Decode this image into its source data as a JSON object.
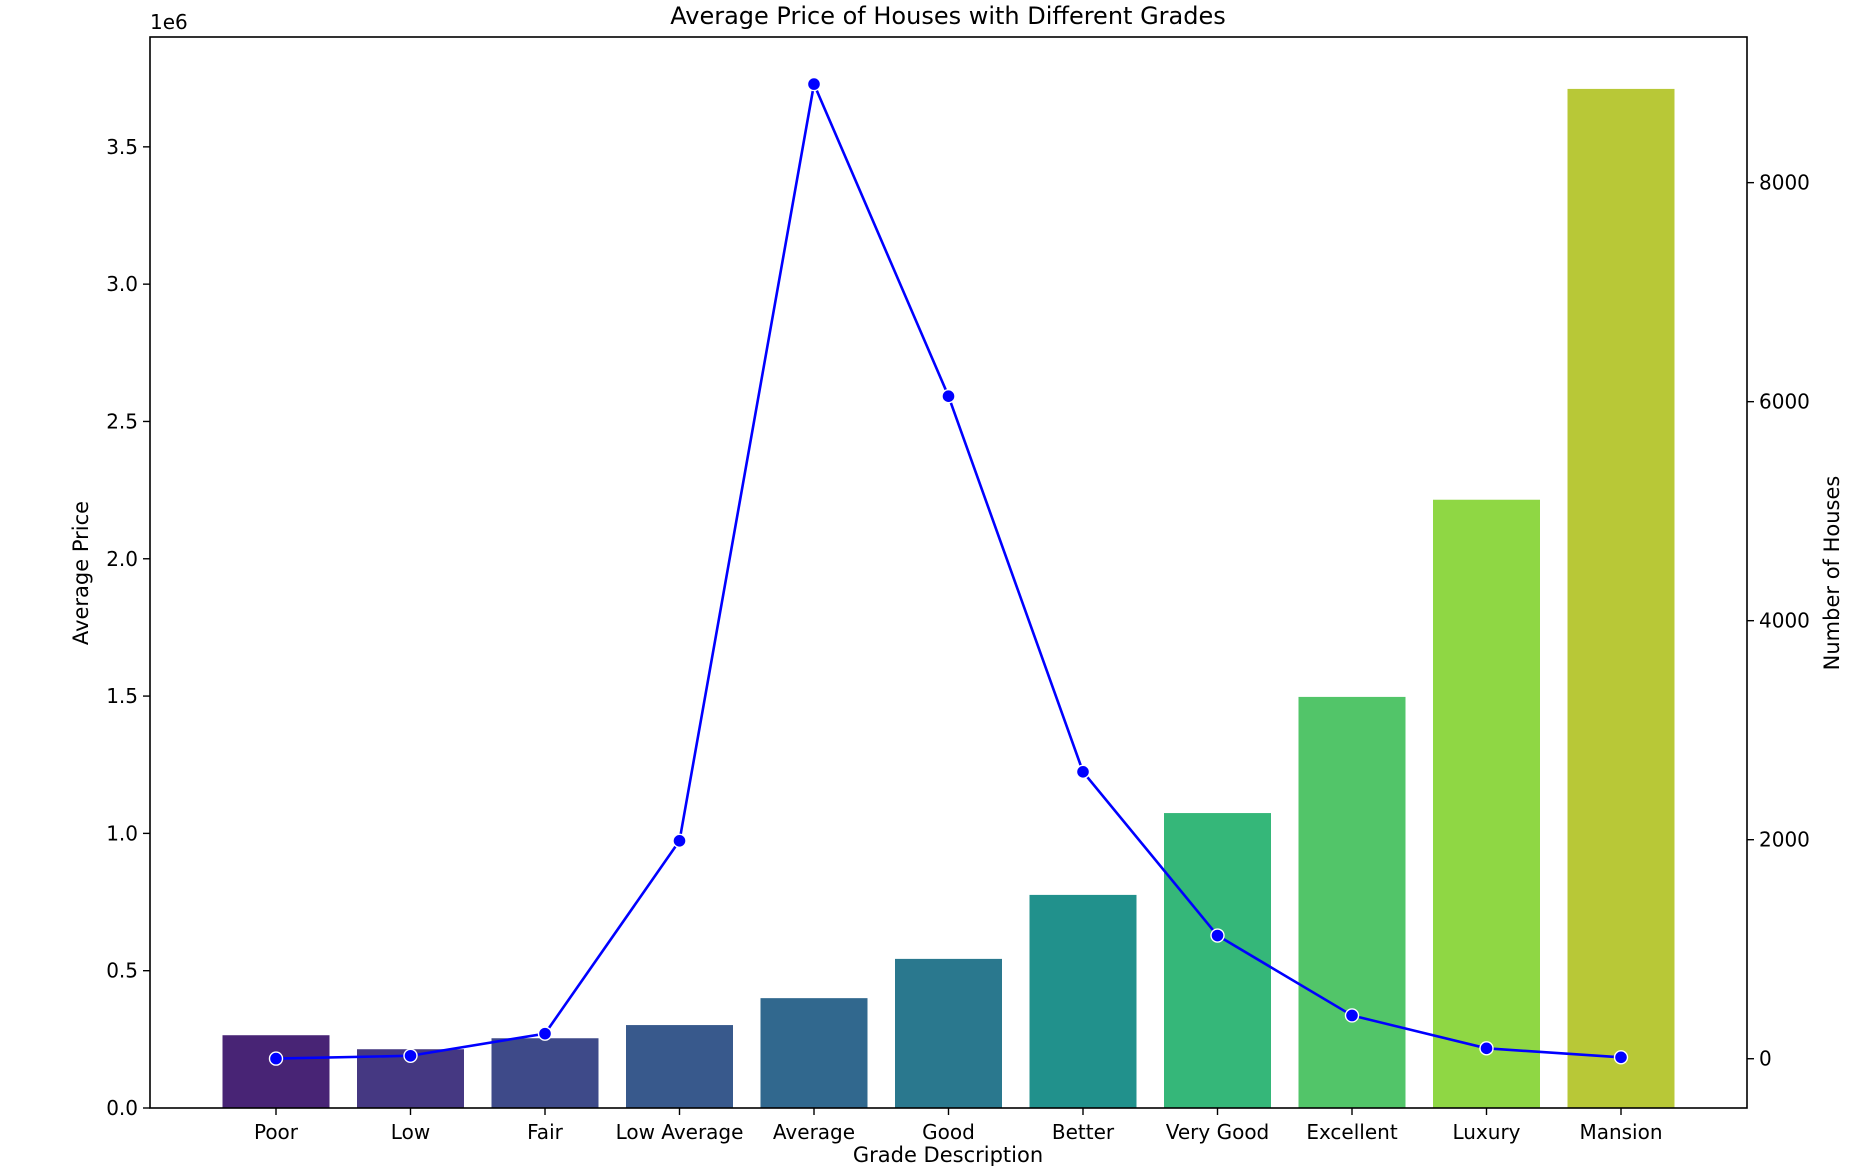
{
  "chart_data": {
    "type": "bar",
    "title": "Average Price of Houses with Different Grades",
    "xlabel": "Grade Description",
    "ylabel": "Average Price",
    "y2label": "Number of Houses",
    "y_offset_text": "1e6",
    "categories": [
      "Poor",
      "Low",
      "Fair",
      "Low Average",
      "Average",
      "Good",
      "Better",
      "Very Good",
      "Excellent",
      "Luxury",
      "Mansion"
    ],
    "series": [
      {
        "type": "bar",
        "axis": "left",
        "values": [
          265000,
          214000,
          254000,
          302000,
          400000,
          543000,
          776000,
          1074000,
          1497000,
          2215000,
          3711000
        ],
        "colors": [
          "#482475",
          "#453882",
          "#3e4a89",
          "#38598c",
          "#31688e",
          "#2a788e",
          "#21918c",
          "#35b779",
          "#52c569",
          "#8fd744",
          "#b8c837"
        ]
      },
      {
        "type": "line",
        "axis": "right",
        "color": "#0000ff",
        "values": [
          1,
          27,
          229,
          1990,
          8900,
          6050,
          2620,
          1125,
          395,
          95,
          13
        ]
      }
    ],
    "ylim": [
      0,
      3900000
    ],
    "y_ticks": [
      "0.0",
      "0.5",
      "1.0",
      "1.5",
      "2.0",
      "2.5",
      "3.0",
      "3.5"
    ],
    "y_tick_values": [
      0,
      500000,
      1000000,
      1500000,
      2000000,
      2500000,
      3000000,
      3500000
    ],
    "y2lim": [
      -450,
      9330
    ],
    "y2_ticks": [
      "0",
      "2000",
      "4000",
      "6000",
      "8000"
    ],
    "y2_tick_values": [
      0,
      2000,
      4000,
      6000,
      8000
    ],
    "grid": false,
    "legend": "none"
  }
}
